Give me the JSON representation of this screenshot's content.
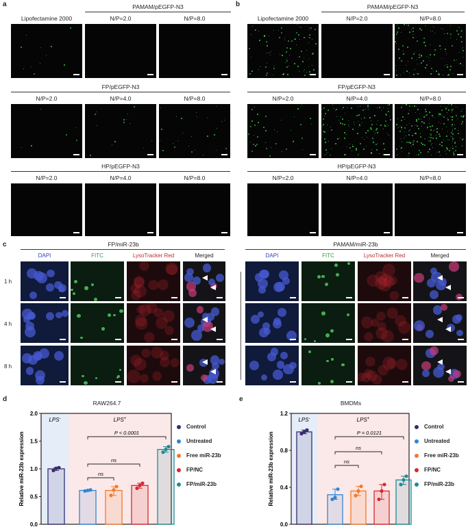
{
  "panel_a": {
    "label": "a",
    "groups": [
      {
        "title": "",
        "sub": [
          "Lipofectamine 2000"
        ]
      },
      {
        "title": "PAMAM/pEGFP-N3",
        "sub": [
          "N/P=2.0",
          "N/P=8.0"
        ]
      },
      {
        "title": "FP/pEGFP-N3",
        "sub": [
          "N/P=2.0",
          "N/P=4.0",
          "N/P=8.0"
        ]
      },
      {
        "title": "HP/pEGFP-N3",
        "sub": [
          "N/P=2.0",
          "N/P=4.0",
          "N/P=8.0"
        ]
      }
    ]
  },
  "panel_b": {
    "label": "b",
    "groups": [
      {
        "title": "",
        "sub": [
          "Lipofectamine 2000"
        ]
      },
      {
        "title": "PAMAM/pEGFP-N3",
        "sub": [
          "N/P=2.0",
          "N/P=8.0"
        ]
      },
      {
        "title": "FP/pEGFP-N3",
        "sub": [
          "N/P=2.0",
          "N/P=4.0",
          "N/P=8.0"
        ]
      },
      {
        "title": "HP/pEGFP-N3",
        "sub": [
          "N/P=2.0",
          "N/P=4.0",
          "N/P=8.0"
        ]
      }
    ]
  },
  "panel_c": {
    "label": "c",
    "left_title": "FP/miR-23b",
    "right_title": "PAMAM/miR-23b",
    "channels": [
      "DAPI",
      "FITC",
      "LysoTracker Red",
      "Merged"
    ],
    "channel_colors": [
      "#2a3fbf",
      "#2e9e3a",
      "#c0282d",
      "#222222"
    ],
    "rows": [
      "1 h",
      "4 h",
      "8 h"
    ]
  },
  "panel_d": {
    "label": "d",
    "title": "RAW264.7",
    "ylabel": "Relative miR-23b expression",
    "lps_neg": "LPS",
    "lps_neg_sup": "-",
    "lps_pos": "LPS",
    "lps_pos_sup": "+",
    "p_value": "P < 0.0001",
    "ns1": "ns",
    "ns2": "ns",
    "yticks": [
      "0.0",
      "0.5",
      "1.0",
      "1.5",
      "2.0"
    ]
  },
  "panel_e": {
    "label": "e",
    "title": "BMDMs",
    "ylabel": "Relative miR-23b expression",
    "lps_neg": "LPS",
    "lps_neg_sup": "-",
    "lps_pos": "LPS",
    "lps_pos_sup": "+",
    "p_value": "P = 0.0121",
    "ns1": "ns",
    "ns2": "ns",
    "yticks": [
      "0.0",
      "0.4",
      "0.8",
      "1.2"
    ]
  },
  "legend": [
    {
      "label": "Control",
      "color": "#3b2a6e"
    },
    {
      "label": "Untreated",
      "color": "#2f86d6"
    },
    {
      "label": "Free miR-23b",
      "color": "#f07a2a"
    },
    {
      "label": "FP/NC",
      "color": "#d8282c"
    },
    {
      "label": "FP/miR-23b",
      "color": "#1d8c96"
    }
  ],
  "chart_data": [
    {
      "type": "bar",
      "title": "RAW264.7",
      "ylabel": "Relative miR-23b expression",
      "ylim": [
        0,
        2.0
      ],
      "categories": [
        "Control",
        "Untreated",
        "Free miR-23b",
        "FP/NC",
        "FP/miR-23b"
      ],
      "values": [
        1.0,
        0.61,
        0.61,
        0.7,
        1.35
      ],
      "points": [
        [
          0.97,
          1.01,
          1.02
        ],
        [
          0.6,
          0.61,
          0.62
        ],
        [
          0.52,
          0.62,
          0.68
        ],
        [
          0.65,
          0.7,
          0.74
        ],
        [
          1.3,
          1.35,
          1.4
        ]
      ]
    },
    {
      "type": "bar",
      "title": "BMDMs",
      "ylabel": "Relative miR-23b expression",
      "ylim": [
        0,
        1.2
      ],
      "categories": [
        "Control",
        "Untreated",
        "Free miR-23b",
        "FP/NC",
        "FP/miR-23b"
      ],
      "values": [
        1.0,
        0.32,
        0.36,
        0.36,
        0.48
      ],
      "points": [
        [
          0.98,
          1.0,
          1.02
        ],
        [
          0.27,
          0.29,
          0.38
        ],
        [
          0.31,
          0.36,
          0.41
        ],
        [
          0.27,
          0.36,
          0.43
        ],
        [
          0.43,
          0.48,
          0.52
        ]
      ]
    }
  ]
}
